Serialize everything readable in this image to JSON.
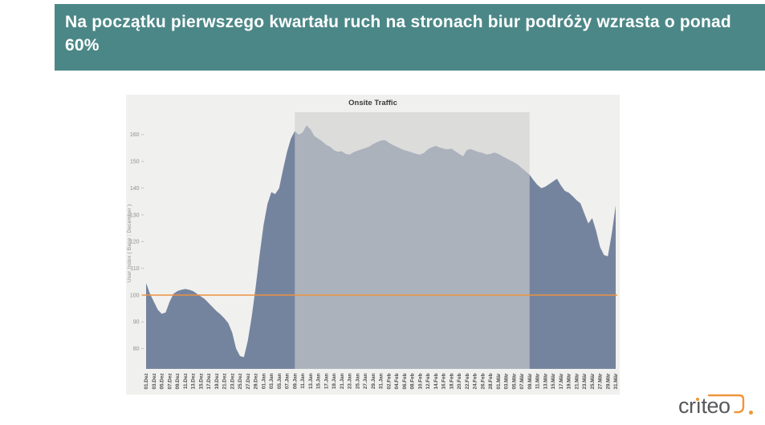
{
  "header": {
    "title": "Na początku pierwszego kwartału ruch na stronach biur podróży wzrasta o ponad 60%",
    "bg_color": "#4C8787",
    "text_color": "#FFFFFF"
  },
  "chart_data": {
    "type": "area",
    "title": "Onsite Traffic",
    "xlabel": "",
    "ylabel": "User Index ( Base : December )",
    "ylim": [
      72,
      168
    ],
    "y_ticks": [
      80,
      90,
      100,
      110,
      120,
      130,
      140,
      150,
      160
    ],
    "grid": false,
    "legend": false,
    "panel_bg": "#F0F0EE",
    "x_tick_labels": [
      "01.Dez",
      "03.Dez",
      "05.Dez",
      "07.Dez",
      "09.Dez",
      "11.Dez",
      "13.Dez",
      "15.Dez",
      "17.Dez",
      "19.Dez",
      "21.Dez",
      "23.Dez",
      "25.Dez",
      "27.Dez",
      "29.Dez",
      "01.Jan",
      "03.Jan",
      "05.Jan",
      "07.Jan",
      "09.Jan",
      "11.Jan",
      "13.Jan",
      "15.Jan",
      "17.Jan",
      "19.Jan",
      "21.Jan",
      "23.Jan",
      "25.Jan",
      "27.Jan",
      "29.Jan",
      "31.Jan",
      "02.Feb",
      "04.Feb",
      "06.Feb",
      "08.Feb",
      "10.Feb",
      "12.Feb",
      "14.Feb",
      "16.Feb",
      "18.Feb",
      "20.Feb",
      "22.Feb",
      "24.Feb",
      "26.Feb",
      "28.Feb",
      "01.Mär",
      "03.Mär",
      "05.Mär",
      "07.Mär",
      "09.Mär",
      "11.Mär",
      "13.Mär",
      "15.Mär",
      "17.Mär",
      "19.Mär",
      "21.Mär",
      "23.Mär",
      "25.Mär",
      "27.Mär",
      "29.Mär",
      "31.Mär"
    ],
    "x_tick_every": 2,
    "baseline": {
      "value": 100,
      "color": "#ED9140"
    },
    "highlight_region": {
      "start_index": 38,
      "end_index": 98,
      "start_label": "09.Jan",
      "end_label": "09.Mär",
      "overlay_color": "rgba(207,207,207,0.61)"
    },
    "series": [
      {
        "name": "Onsite Traffic",
        "color": "#75849E",
        "values": [
          104.5,
          100.5,
          97.5,
          94.5,
          93,
          93.5,
          97.5,
          100.5,
          101.5,
          102,
          102.3,
          102,
          101.5,
          100.5,
          99.5,
          98.5,
          97,
          95.5,
          94,
          92.8,
          91.3,
          89.5,
          86,
          80,
          77.2,
          76.8,
          83,
          92,
          103,
          115,
          126,
          134,
          138.5,
          137.8,
          140,
          147,
          153.5,
          158.5,
          161.3,
          160,
          160.8,
          163.5,
          162,
          159.5,
          158.5,
          157.5,
          156.2,
          155.5,
          154.2,
          153.6,
          153.8,
          152.8,
          152.5,
          153.4,
          154,
          154.5,
          155,
          155.5,
          156.5,
          157.2,
          157.8,
          158,
          157,
          156.2,
          155.5,
          154.8,
          154.2,
          153.8,
          153.3,
          152.8,
          152.5,
          153.2,
          154.5,
          155.3,
          155.8,
          155.2,
          154.8,
          154.5,
          154.8,
          153.8,
          152.8,
          151.9,
          154.3,
          154.6,
          154,
          153.5,
          153.2,
          152.6,
          152.8,
          153.3,
          152.8,
          152,
          151.2,
          150.4,
          149.7,
          148.8,
          147.5,
          146.3,
          145,
          143,
          141.2,
          140,
          140.5,
          141.5,
          142.5,
          143.5,
          141,
          139,
          138.3,
          137,
          135.5,
          134.3,
          130.5,
          126.8,
          128.8,
          124,
          118,
          115,
          114.5,
          123,
          133.5
        ]
      }
    ]
  },
  "logo": {
    "text": "criteo",
    "text_color": "#57585A",
    "accent_color": "#F0953B"
  }
}
